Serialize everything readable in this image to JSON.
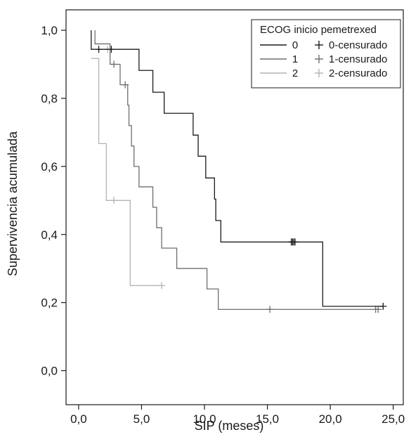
{
  "chart_data": {
    "type": "line",
    "subtype": "kaplan-meier step",
    "xlabel": "SIP (meses)",
    "ylabel": "Supervivencia acumulada",
    "xlim": [
      -1.0,
      25.8
    ],
    "ylim": [
      -0.1,
      1.06
    ],
    "x_ticks": [
      0,
      5,
      10,
      15,
      20,
      25
    ],
    "x_tick_labels": [
      "0,0",
      "5,0",
      "10,0",
      "15,0",
      "20,0",
      "25,0"
    ],
    "y_ticks": [
      0.0,
      0.2,
      0.4,
      0.6,
      0.8,
      1.0
    ],
    "y_tick_labels": [
      "0,0",
      "0,2",
      "0,4",
      "0,6",
      "0,8",
      "1,0"
    ],
    "grid": false,
    "legend": {
      "title": "ECOG inicio pemetrexed",
      "placement": "top-right",
      "line_entries": [
        "0",
        "1",
        "2"
      ],
      "censor_entries": [
        "0-censurado",
        "1-censurado",
        "2-censurado"
      ]
    },
    "series": [
      {
        "name": "0",
        "color": "#1a1a1a",
        "steps": [
          [
            1.0,
            1.0
          ],
          [
            1.0,
            0.944
          ],
          [
            4.8,
            0.944
          ],
          [
            4.8,
            0.882
          ],
          [
            5.9,
            0.882
          ],
          [
            5.9,
            0.818
          ],
          [
            6.8,
            0.818
          ],
          [
            6.8,
            0.756
          ],
          [
            9.1,
            0.756
          ],
          [
            9.1,
            0.692
          ],
          [
            9.5,
            0.692
          ],
          [
            9.5,
            0.63
          ],
          [
            10.1,
            0.63
          ],
          [
            10.1,
            0.566
          ],
          [
            10.8,
            0.566
          ],
          [
            10.8,
            0.504
          ],
          [
            10.9,
            0.504
          ],
          [
            10.9,
            0.441
          ],
          [
            11.3,
            0.441
          ],
          [
            11.3,
            0.378
          ],
          [
            19.4,
            0.378
          ],
          [
            19.4,
            0.189
          ],
          [
            24.2,
            0.189
          ]
        ],
        "censored": [
          [
            1.6,
            0.944
          ],
          [
            2.6,
            0.944
          ],
          [
            16.9,
            0.378
          ],
          [
            17.0,
            0.378
          ],
          [
            17.1,
            0.378
          ],
          [
            17.2,
            0.378
          ],
          [
            24.2,
            0.189
          ]
        ]
      },
      {
        "name": "1",
        "color": "#6e6e6e",
        "steps": [
          [
            1.3,
            1.0
          ],
          [
            1.3,
            0.96
          ],
          [
            2.5,
            0.96
          ],
          [
            2.5,
            0.9
          ],
          [
            3.3,
            0.9
          ],
          [
            3.3,
            0.84
          ],
          [
            3.9,
            0.84
          ],
          [
            3.9,
            0.78
          ],
          [
            4.0,
            0.78
          ],
          [
            4.0,
            0.72
          ],
          [
            4.2,
            0.72
          ],
          [
            4.2,
            0.66
          ],
          [
            4.4,
            0.66
          ],
          [
            4.4,
            0.6
          ],
          [
            4.8,
            0.6
          ],
          [
            4.8,
            0.54
          ],
          [
            5.9,
            0.54
          ],
          [
            5.9,
            0.48
          ],
          [
            6.2,
            0.48
          ],
          [
            6.2,
            0.42
          ],
          [
            6.6,
            0.42
          ],
          [
            6.6,
            0.36
          ],
          [
            7.8,
            0.36
          ],
          [
            7.8,
            0.3
          ],
          [
            10.2,
            0.3
          ],
          [
            10.2,
            0.24
          ],
          [
            11.1,
            0.24
          ],
          [
            11.1,
            0.18
          ],
          [
            23.8,
            0.18
          ]
        ],
        "censored": [
          [
            2.8,
            0.9
          ],
          [
            3.7,
            0.84
          ],
          [
            15.2,
            0.18
          ],
          [
            23.6,
            0.18
          ],
          [
            23.8,
            0.18
          ]
        ]
      },
      {
        "name": "2",
        "color": "#b3b3b3",
        "steps": [
          [
            1.0,
            0.917
          ],
          [
            1.6,
            0.917
          ],
          [
            1.6,
            0.667
          ],
          [
            2.2,
            0.667
          ],
          [
            2.2,
            0.5
          ],
          [
            4.1,
            0.5
          ],
          [
            4.1,
            0.25
          ],
          [
            6.6,
            0.25
          ]
        ],
        "censored": [
          [
            2.3,
            0.944
          ],
          [
            2.8,
            0.5
          ],
          [
            6.6,
            0.25
          ]
        ]
      }
    ]
  }
}
